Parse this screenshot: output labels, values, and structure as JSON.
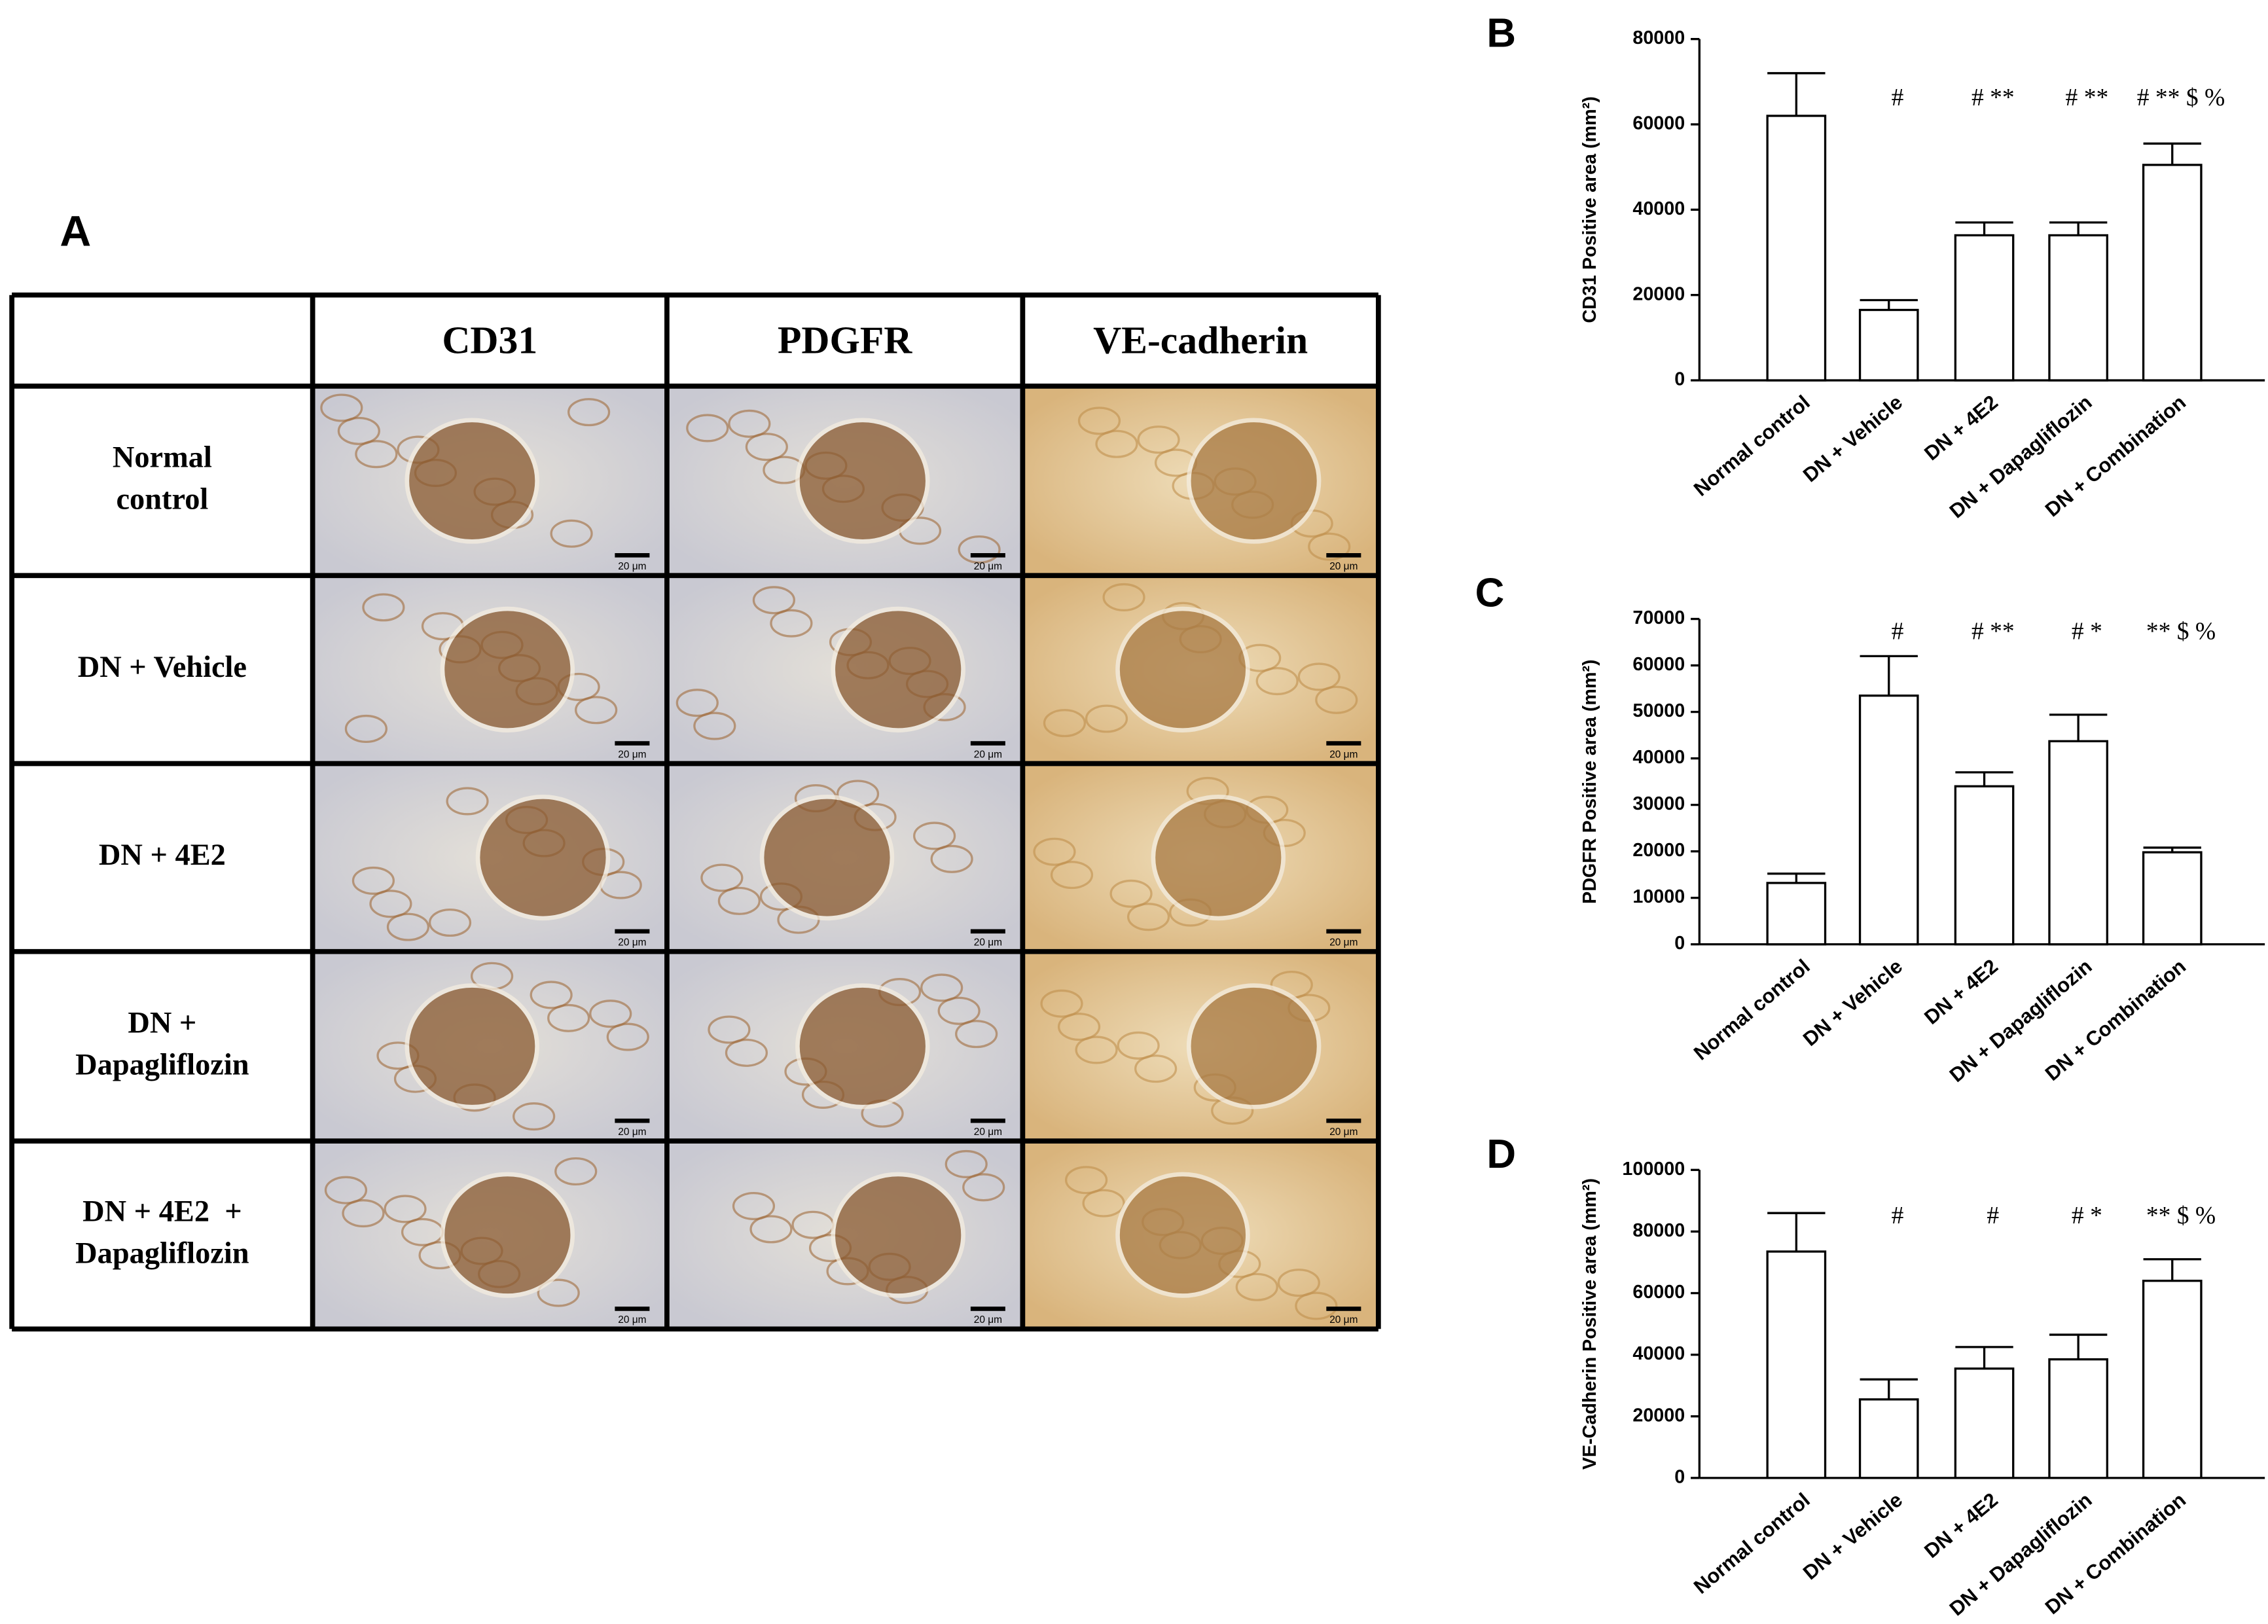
{
  "panel_a": {
    "label": "A",
    "columns": [
      "CD31",
      "PDGFR",
      "VE-cadherin"
    ],
    "rows": [
      "Normal control",
      "DN + Vehicle",
      "DN + 4E2",
      "DN + Dapagliflozin",
      "DN + 4E2  + Dapagliflozin"
    ],
    "scale_bar": "20 μm"
  },
  "chart_data": [
    {
      "type": "bar",
      "label": "B",
      "y_label": "CD31 Positive area (mm²)",
      "categories": [
        "Normal control",
        "DN + Vehicle",
        "DN + 4E2",
        "DN + Dapagliflozin",
        "DN + Combination"
      ],
      "values": [
        62000,
        16500,
        34000,
        34000,
        50500
      ],
      "errors": [
        10000,
        2300,
        3000,
        3000,
        5000
      ],
      "annotations": [
        null,
        "#",
        "# **",
        "# **",
        "# ** $ %"
      ],
      "color": "#ffffff",
      "ylim": [
        0,
        80000
      ],
      "yticks": [
        0,
        20000,
        40000,
        60000,
        80000
      ]
    },
    {
      "type": "bar",
      "label": "C",
      "y_label": "PDGFR Positive area (mm²)",
      "categories": [
        "Normal control",
        "DN + Vehicle",
        "DN + 4E2",
        "DN + Dapagliflozin",
        "DN + Combination"
      ],
      "values": [
        13200,
        53500,
        34000,
        43700,
        19800
      ],
      "errors": [
        2000,
        8500,
        3000,
        5700,
        1000
      ],
      "annotations": [
        null,
        "#",
        "# **",
        "# *",
        "** $ %"
      ],
      "color": "#ffffff",
      "ylim": [
        0,
        70000
      ],
      "yticks": [
        0,
        10000,
        20000,
        30000,
        40000,
        50000,
        60000,
        70000
      ]
    },
    {
      "type": "bar",
      "label": "D",
      "y_label": "VE-Cadherin Positive area (mm²)",
      "categories": [
        "Normal control",
        "DN + Vehicle",
        "DN + 4E2",
        "DN + Dapagliflozin",
        "DN + Combination"
      ],
      "values": [
        73500,
        25500,
        35500,
        38500,
        64000
      ],
      "errors": [
        12500,
        6500,
        7000,
        8000,
        7000
      ],
      "annotations": [
        null,
        "#",
        "#",
        "# *",
        "** $ %"
      ],
      "color": "#ffffff",
      "ylim": [
        0,
        100000
      ],
      "yticks": [
        0,
        20000,
        40000,
        60000,
        80000,
        100000
      ]
    }
  ]
}
